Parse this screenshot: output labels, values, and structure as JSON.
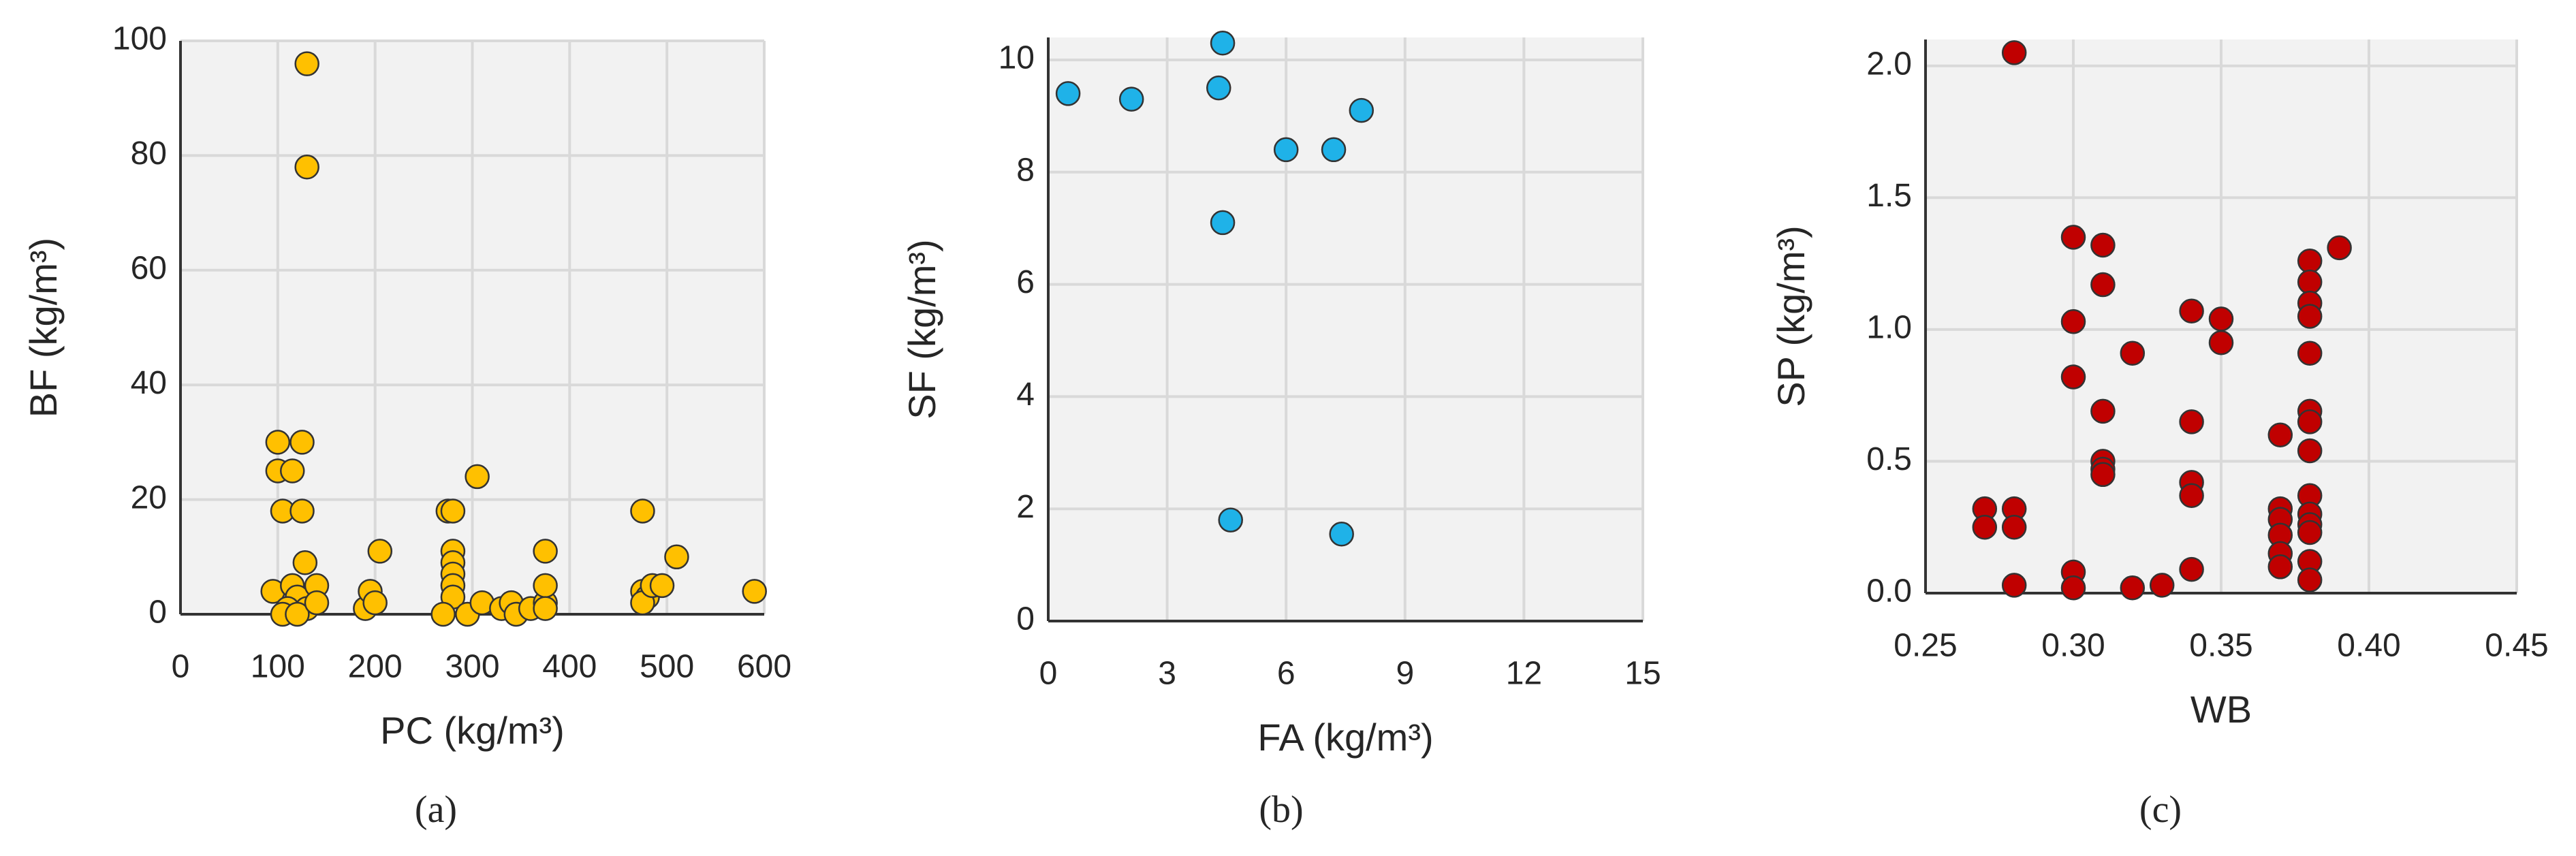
{
  "chart_data": [
    {
      "type": "scatter",
      "x_label": "PC (kg/m³)",
      "y_label": "BF (kg/m³)",
      "panel_label": "(a)",
      "color": "#ffc000",
      "grid": true,
      "x": [
        100,
        125,
        100,
        115,
        105,
        125,
        130,
        130,
        128,
        95,
        115,
        120,
        140,
        110,
        130,
        105,
        120,
        140,
        190,
        195,
        205,
        200,
        275,
        280,
        280,
        280,
        280,
        280,
        280,
        270,
        295,
        305,
        310,
        330,
        340,
        345,
        360,
        375,
        375,
        375,
        375,
        475,
        475,
        480,
        475,
        485,
        495,
        510,
        590
      ],
      "y": [
        30,
        30,
        25,
        25,
        18,
        18,
        96,
        78,
        9,
        4,
        5,
        3,
        5,
        1,
        1,
        0,
        0,
        2,
        1,
        4,
        11,
        2,
        18,
        18,
        11,
        9,
        7,
        5,
        3,
        0,
        0,
        24,
        2,
        1,
        2,
        0,
        1,
        2,
        5,
        11,
        1,
        18,
        4,
        3,
        2,
        5,
        5,
        10,
        4
      ],
      "xlim": [
        0,
        600
      ],
      "ylim": [
        0,
        100
      ],
      "xticks": [
        0,
        100,
        200,
        300,
        400,
        500,
        600
      ],
      "yticks": [
        0,
        20,
        40,
        60,
        80,
        100
      ]
    },
    {
      "type": "scatter",
      "x_label": "FA (kg/m³)",
      "y_label": "SF (kg/m³)",
      "panel_label": "(b)",
      "color": "#1fb2e8",
      "grid": true,
      "x": [
        0.5,
        2.1,
        4.4,
        4.3,
        4.4,
        4.6,
        6.0,
        7.2,
        7.9,
        7.4
      ],
      "y": [
        9.4,
        9.3,
        10.3,
        9.5,
        7.1,
        1.8,
        8.4,
        8.4,
        9.1,
        1.55
      ],
      "xlim": [
        0,
        15
      ],
      "ylim": [
        0,
        10.4
      ],
      "xticks": [
        0,
        3,
        6,
        9,
        12,
        15
      ],
      "yticks": [
        0,
        2,
        4,
        6,
        8,
        10
      ]
    },
    {
      "type": "scatter",
      "x_label": "WB",
      "y_label": "SP (kg/m³)",
      "panel_label": "(c)",
      "color": "#c00000",
      "grid": true,
      "x": [
        0.28,
        0.27,
        0.27,
        0.28,
        0.28,
        0.28,
        0.3,
        0.3,
        0.3,
        0.3,
        0.3,
        0.31,
        0.31,
        0.31,
        0.31,
        0.31,
        0.31,
        0.32,
        0.32,
        0.33,
        0.34,
        0.34,
        0.34,
        0.34,
        0.34,
        0.35,
        0.35,
        0.37,
        0.37,
        0.37,
        0.37,
        0.37,
        0.37,
        0.38,
        0.38,
        0.38,
        0.38,
        0.38,
        0.38,
        0.38,
        0.38,
        0.38,
        0.38,
        0.38,
        0.38,
        0.38,
        0.38,
        0.39
      ],
      "y": [
        2.05,
        0.32,
        0.25,
        0.32,
        0.25,
        0.03,
        1.35,
        1.03,
        0.82,
        0.08,
        0.02,
        1.32,
        1.17,
        0.69,
        0.5,
        0.47,
        0.45,
        0.91,
        0.02,
        0.03,
        1.07,
        0.65,
        0.42,
        0.37,
        0.09,
        1.04,
        0.95,
        0.6,
        0.32,
        0.28,
        0.22,
        0.15,
        0.1,
        1.26,
        1.18,
        1.1,
        1.05,
        0.91,
        0.69,
        0.65,
        0.54,
        0.37,
        0.3,
        0.26,
        0.23,
        0.12,
        0.05,
        1.31
      ],
      "xlim": [
        0.25,
        0.45
      ],
      "ylim": [
        0,
        2.1
      ],
      "xticks": [
        {
          "value": 0.25,
          "label": "0.25"
        },
        {
          "value": 0.3,
          "label": "0.30"
        },
        {
          "value": 0.35,
          "label": "0.35"
        },
        {
          "value": 0.4,
          "label": "0.40"
        },
        {
          "value": 0.45,
          "label": "0.45"
        }
      ],
      "yticks": [
        {
          "value": 0,
          "label": "0.0"
        },
        0.5,
        {
          "value": 1,
          "label": "1.0"
        },
        1.5,
        {
          "value": 2,
          "label": "2.0"
        }
      ]
    }
  ]
}
